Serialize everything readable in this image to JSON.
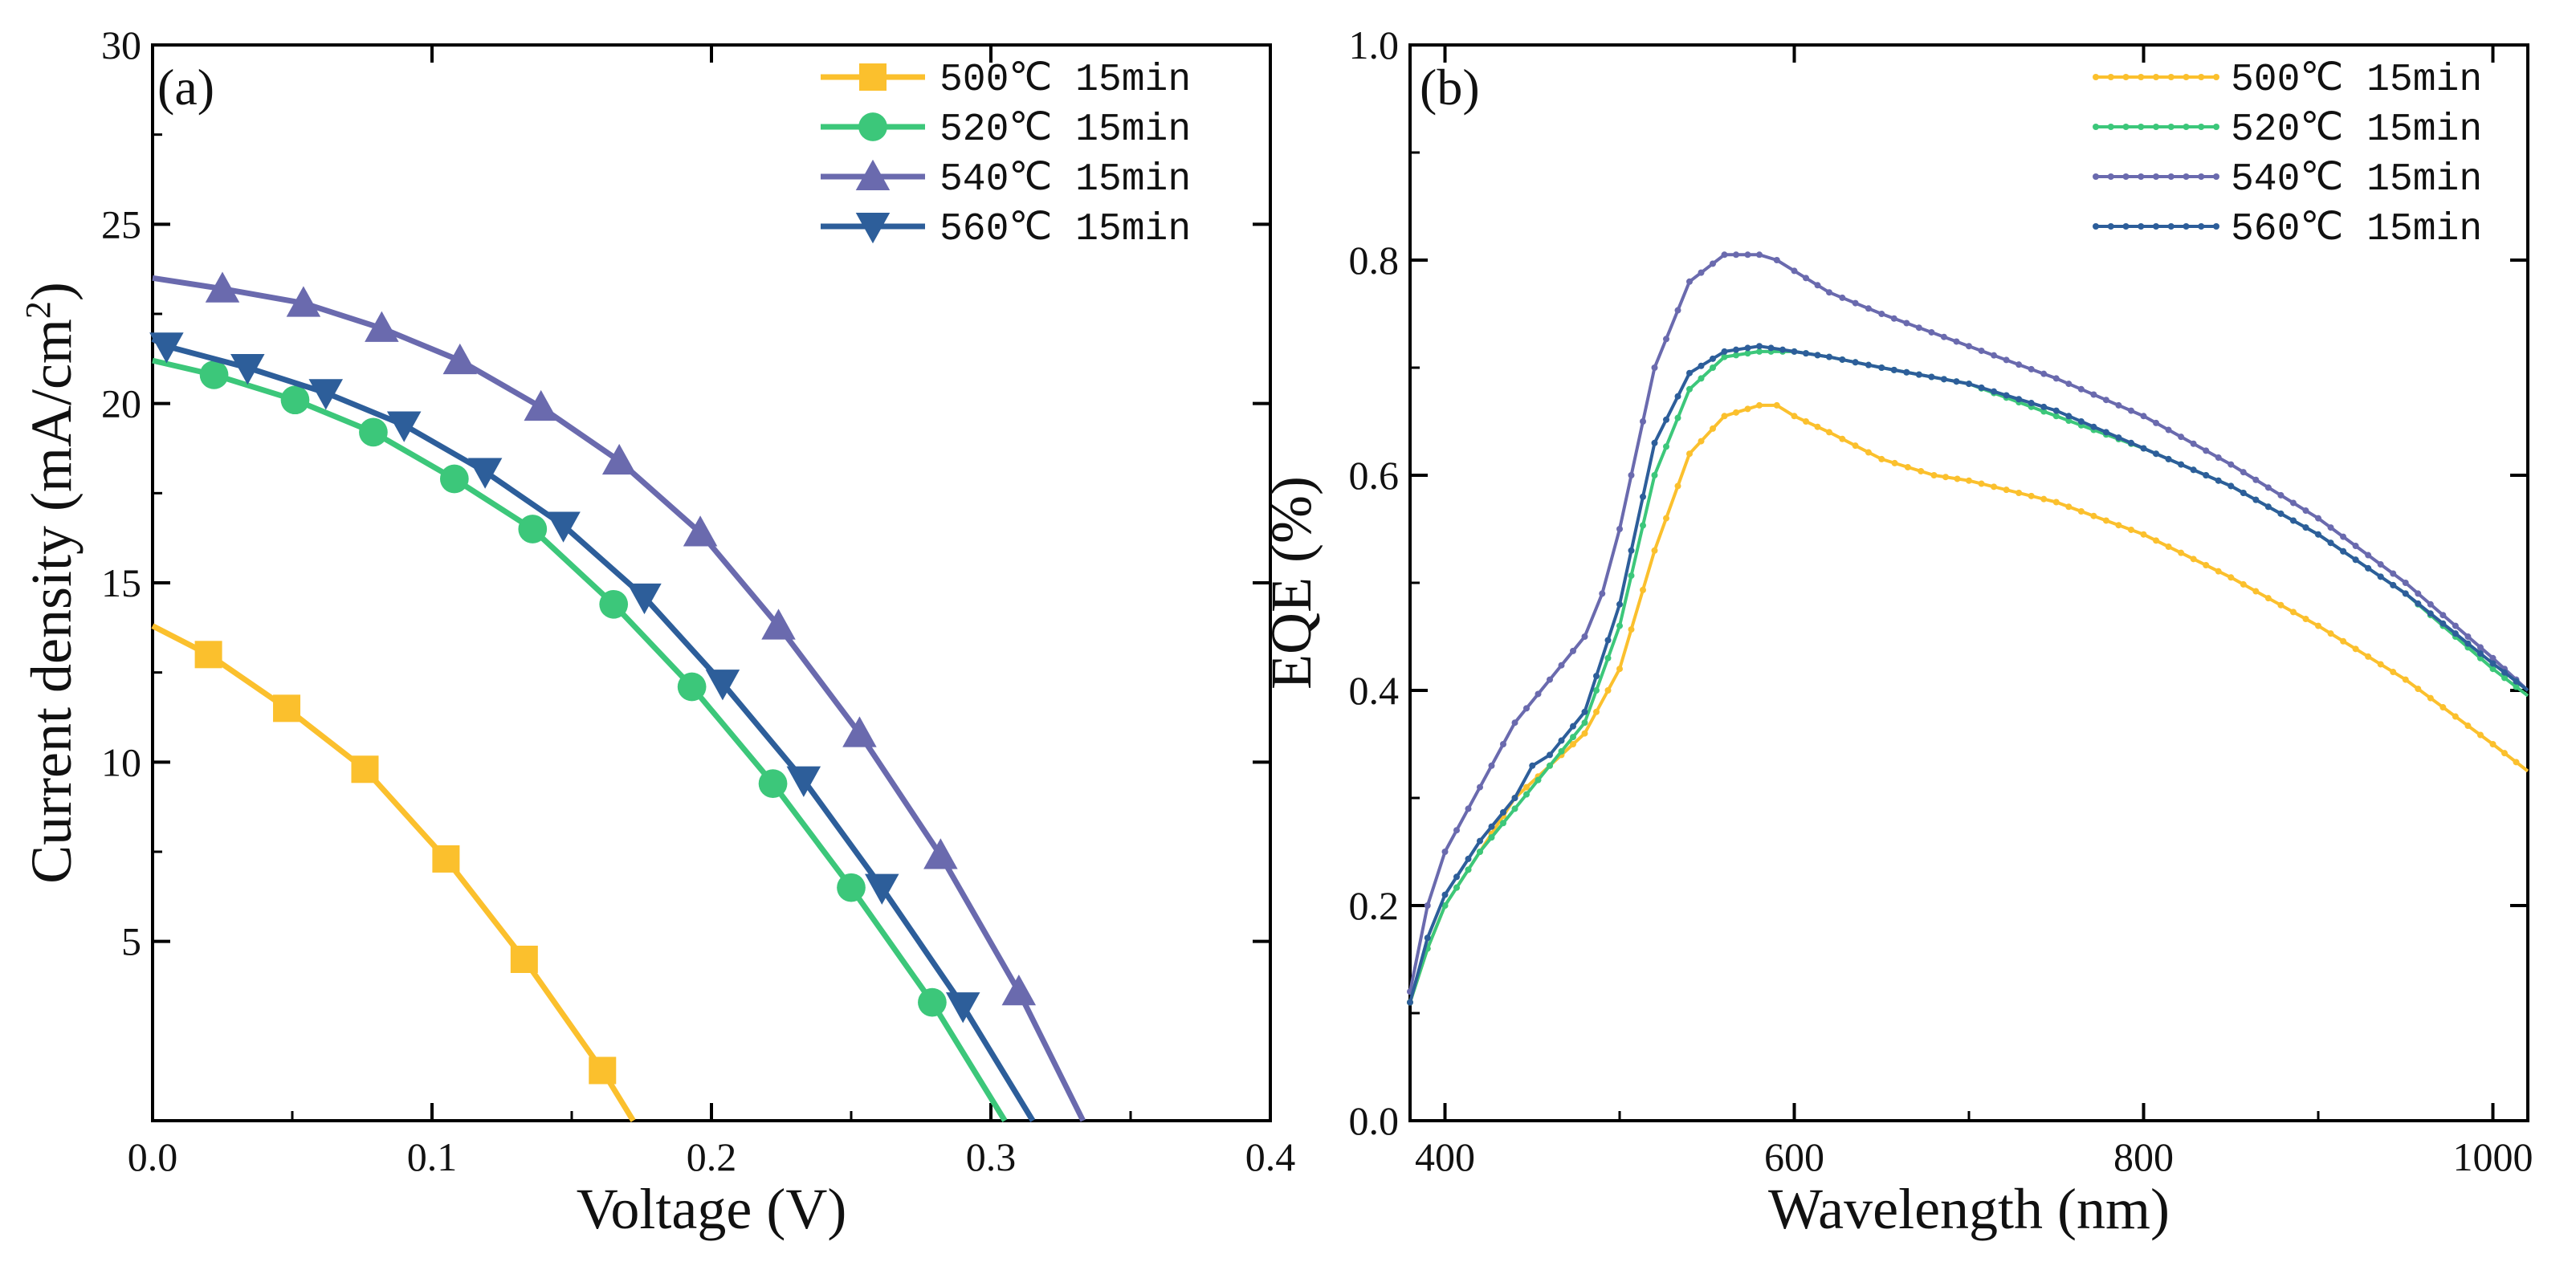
{
  "chart_data": [
    {
      "type": "line",
      "panel_label": "(a)",
      "title": "",
      "xlabel": "Voltage (V)",
      "ylabel": "Current density (mA/cm",
      "ylabel_sup": "2",
      "ylabel_close": ")",
      "xlim": [
        0,
        0.4
      ],
      "ylim": [
        0,
        30
      ],
      "xticks": [
        0.0,
        0.1,
        0.2,
        0.3,
        0.4
      ],
      "xtick_labels": [
        "0.0",
        "0.1",
        "0.2",
        "0.3",
        "0.4"
      ],
      "yticks": [
        5,
        10,
        15,
        20,
        25,
        30
      ],
      "ytick_labels": [
        "5",
        "10",
        "15",
        "20",
        "25",
        "30"
      ],
      "grid": false,
      "legend_position": "top-right",
      "series": [
        {
          "name": "500℃ 15min",
          "color": "#FBC02D",
          "marker": "square",
          "x": [
            0.0,
            0.02,
            0.048,
            0.076,
            0.105,
            0.133,
            0.161,
            0.172
          ],
          "y": [
            13.8,
            13.0,
            11.5,
            9.8,
            7.3,
            4.5,
            1.4,
            0.0
          ],
          "marker_indices": [
            1,
            2,
            3,
            4,
            5,
            6
          ]
        },
        {
          "name": "520℃ 15min",
          "color": "#3CC77A",
          "marker": "circle",
          "x": [
            0.0,
            0.022,
            0.051,
            0.079,
            0.108,
            0.136,
            0.165,
            0.193,
            0.222,
            0.25,
            0.279,
            0.305
          ],
          "y": [
            21.2,
            20.8,
            20.1,
            19.2,
            17.9,
            16.5,
            14.4,
            12.1,
            9.4,
            6.5,
            3.3,
            0.0
          ],
          "marker_indices": [
            1,
            2,
            3,
            4,
            5,
            6,
            7,
            8,
            9,
            10
          ]
        },
        {
          "name": "540℃ 15min",
          "color": "#6A6AAE",
          "marker": "triangle-up",
          "x": [
            0.0,
            0.025,
            0.054,
            0.082,
            0.11,
            0.139,
            0.167,
            0.196,
            0.224,
            0.253,
            0.282,
            0.31,
            0.333
          ],
          "y": [
            23.5,
            23.2,
            22.8,
            22.1,
            21.2,
            19.9,
            18.4,
            16.4,
            13.8,
            10.8,
            7.4,
            3.6,
            0.0
          ],
          "marker_indices": [
            1,
            2,
            3,
            4,
            5,
            6,
            7,
            8,
            9,
            10,
            11
          ]
        },
        {
          "name": "560℃ 15min",
          "color": "#2D5E9A",
          "marker": "triangle-down",
          "x": [
            0.0,
            0.005,
            0.034,
            0.062,
            0.09,
            0.119,
            0.147,
            0.176,
            0.204,
            0.233,
            0.261,
            0.29,
            0.315
          ],
          "y": [
            21.8,
            21.6,
            21.0,
            20.3,
            19.4,
            18.1,
            16.6,
            14.6,
            12.2,
            9.5,
            6.5,
            3.2,
            0.0
          ],
          "marker_indices": [
            1,
            2,
            3,
            4,
            5,
            6,
            7,
            8,
            9,
            10,
            11
          ]
        }
      ]
    },
    {
      "type": "line",
      "panel_label": "(b)",
      "title": "",
      "xlabel": "Wavelength (nm)",
      "ylabel": "EQE (%)",
      "xlim": [
        380,
        1020
      ],
      "ylim": [
        0,
        1.0
      ],
      "xticks": [
        400,
        600,
        800,
        1000
      ],
      "xtick_labels": [
        "400",
        "600",
        "800",
        "1000"
      ],
      "yticks": [
        0.0,
        0.2,
        0.4,
        0.6,
        0.8,
        1.0
      ],
      "ytick_labels": [
        "0.0",
        "0.2",
        "0.4",
        "0.6",
        "0.8",
        "1.0"
      ],
      "grid": false,
      "legend_position": "top-right",
      "series": [
        {
          "name": "500℃ 15min",
          "color": "#FBC02D",
          "marker": "dot",
          "x": [
            380,
            390,
            400,
            420,
            440,
            460,
            480,
            500,
            520,
            540,
            560,
            580,
            590,
            600,
            620,
            650,
            680,
            700,
            750,
            800,
            850,
            900,
            950,
            1000,
            1020
          ],
          "y": [
            0.11,
            0.16,
            0.2,
            0.25,
            0.3,
            0.33,
            0.36,
            0.42,
            0.53,
            0.62,
            0.655,
            0.665,
            0.665,
            0.655,
            0.64,
            0.615,
            0.6,
            0.595,
            0.575,
            0.545,
            0.505,
            0.46,
            0.41,
            0.35,
            0.325
          ]
        },
        {
          "name": "520℃ 15min",
          "color": "#3CC77A",
          "marker": "dot",
          "x": [
            380,
            390,
            400,
            420,
            440,
            460,
            480,
            500,
            520,
            540,
            560,
            580,
            600,
            620,
            650,
            700,
            750,
            800,
            850,
            900,
            950,
            1000,
            1020
          ],
          "y": [
            0.11,
            0.16,
            0.2,
            0.25,
            0.29,
            0.33,
            0.37,
            0.46,
            0.6,
            0.68,
            0.71,
            0.715,
            0.715,
            0.71,
            0.7,
            0.685,
            0.655,
            0.625,
            0.59,
            0.545,
            0.49,
            0.42,
            0.395
          ]
        },
        {
          "name": "540℃ 15min",
          "color": "#6A6AAE",
          "marker": "dot",
          "x": [
            380,
            390,
            400,
            420,
            440,
            460,
            480,
            490,
            500,
            520,
            540,
            560,
            580,
            590,
            600,
            620,
            650,
            700,
            750,
            800,
            850,
            900,
            950,
            1000,
            1020
          ],
          "y": [
            0.12,
            0.2,
            0.25,
            0.31,
            0.37,
            0.41,
            0.45,
            0.49,
            0.55,
            0.7,
            0.78,
            0.805,
            0.805,
            0.8,
            0.79,
            0.77,
            0.75,
            0.72,
            0.69,
            0.655,
            0.61,
            0.56,
            0.5,
            0.43,
            0.4
          ]
        },
        {
          "name": "560℃ 15min",
          "color": "#2D5E9A",
          "marker": "dot",
          "x": [
            380,
            390,
            400,
            420,
            440,
            450,
            460,
            480,
            500,
            520,
            540,
            560,
            580,
            600,
            620,
            650,
            700,
            750,
            800,
            850,
            900,
            950,
            1000,
            1020
          ],
          "y": [
            0.11,
            0.17,
            0.21,
            0.26,
            0.3,
            0.33,
            0.34,
            0.38,
            0.48,
            0.63,
            0.695,
            0.715,
            0.72,
            0.715,
            0.71,
            0.7,
            0.685,
            0.66,
            0.625,
            0.59,
            0.545,
            0.49,
            0.425,
            0.4
          ]
        }
      ]
    }
  ]
}
